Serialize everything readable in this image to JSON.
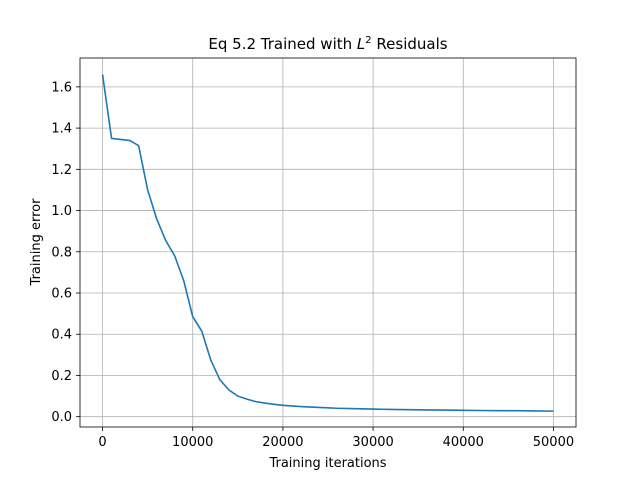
{
  "chart_data": {
    "type": "line",
    "title": "Eq 5.2 Trained with L² Residuals",
    "title_parts": {
      "prefix": "Eq 5.2 Trained with ",
      "var": "L",
      "sup": "2",
      "suffix": " Residuals"
    },
    "xlabel": "Training iterations",
    "ylabel": "Training error",
    "xlim": [
      -2500,
      52500
    ],
    "ylim": [
      -0.05,
      1.74
    ],
    "xticks": [
      0,
      10000,
      20000,
      30000,
      40000,
      50000
    ],
    "xtick_labels": [
      "0",
      "10000",
      "20000",
      "30000",
      "40000",
      "50000"
    ],
    "yticks": [
      0.0,
      0.2,
      0.4,
      0.6,
      0.8,
      1.0,
      1.2,
      1.4,
      1.6
    ],
    "ytick_labels": [
      "0.0",
      "0.2",
      "0.4",
      "0.6",
      "0.8",
      "1.0",
      "1.2",
      "1.4",
      "1.6"
    ],
    "grid": true,
    "line_color": "#1f77b4",
    "series": [
      {
        "x": [
          0,
          1000,
          2000,
          3000,
          4000,
          5000,
          6000,
          7000,
          8000,
          9000,
          10000,
          11000,
          12000,
          13000,
          14000,
          15000,
          16000,
          17000,
          18000,
          19000,
          20000,
          22000,
          24000,
          26000,
          28000,
          30000,
          32000,
          34000,
          36000,
          38000,
          40000,
          42000,
          44000,
          46000,
          48000,
          50000
        ],
        "y": [
          1.66,
          1.35,
          1.345,
          1.34,
          1.315,
          1.1,
          0.96,
          0.855,
          0.78,
          0.66,
          0.485,
          0.415,
          0.275,
          0.18,
          0.13,
          0.1,
          0.085,
          0.073,
          0.066,
          0.06,
          0.055,
          0.049,
          0.045,
          0.041,
          0.039,
          0.037,
          0.035,
          0.034,
          0.033,
          0.032,
          0.031,
          0.03,
          0.029,
          0.029,
          0.028,
          0.027
        ]
      }
    ]
  }
}
